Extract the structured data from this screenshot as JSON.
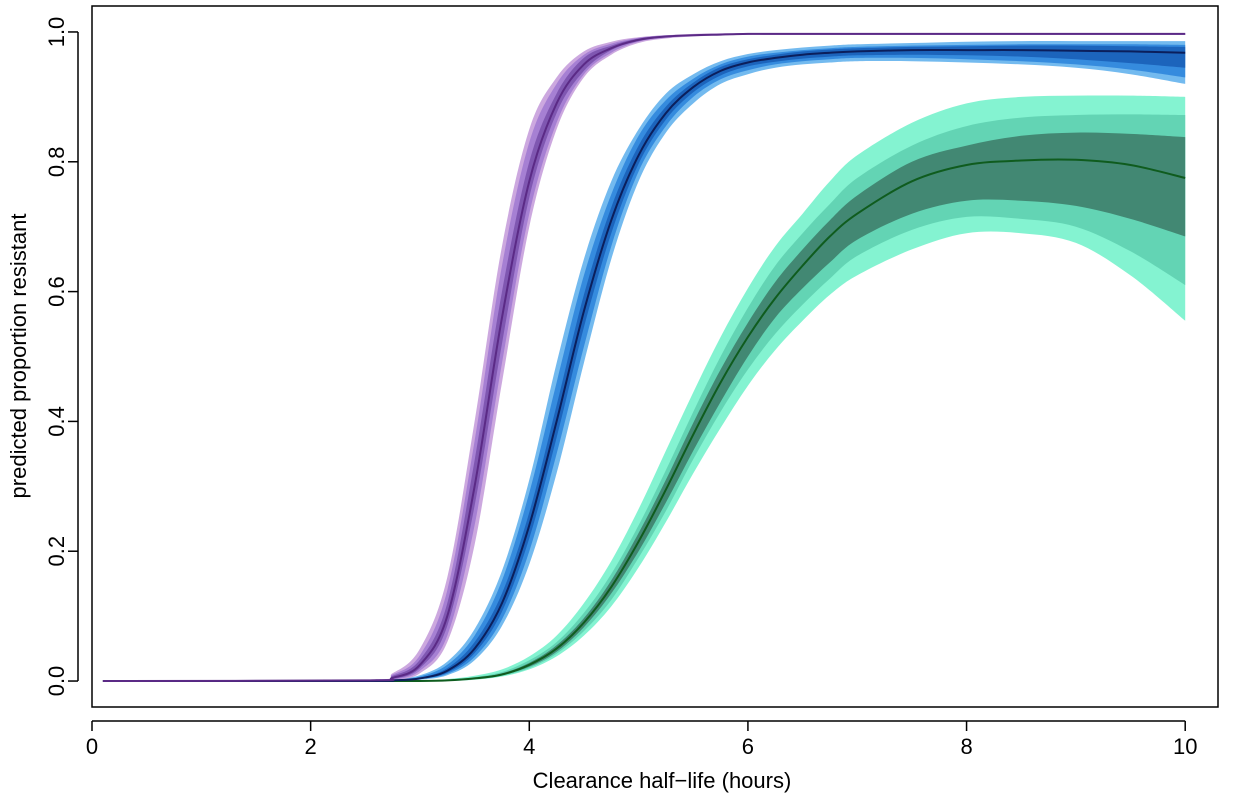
{
  "chart_data": {
    "type": "line",
    "title": "",
    "xlabel": "Clearance half−life (hours)",
    "ylabel": "predicted proportion resistant",
    "xlim": [
      0,
      10.3
    ],
    "ylim": [
      -0.04,
      1.04
    ],
    "x_ticks": [
      "0",
      "2",
      "4",
      "6",
      "8",
      "10"
    ],
    "y_ticks": [
      "0.0",
      "0.2",
      "0.4",
      "0.6",
      "0.8",
      "1.0"
    ],
    "grid": false,
    "legend": "none",
    "x": [
      0.1,
      2.5,
      2.75,
      3,
      3.25,
      3.5,
      3.75,
      4,
      4.25,
      4.5,
      4.75,
      5,
      5.25,
      5.5,
      5.75,
      6,
      6.25,
      6.5,
      6.75,
      7,
      7.5,
      8,
      8.5,
      9,
      9.5,
      10
    ],
    "series": [
      {
        "color": "#5b2a86",
        "band_colors": [
          "#c9a3dd",
          "#a27bd2",
          "#7b52ad"
        ],
        "values": [
          0,
          0.001,
          0.005,
          0.025,
          0.1,
          0.3,
          0.56,
          0.77,
          0.89,
          0.95,
          0.975,
          0.988,
          0.993,
          0.995,
          0.996,
          0.997,
          0.997,
          0.997,
          0.997,
          0.997,
          0.997,
          0.997,
          0.997,
          0.997,
          0.997,
          0.997
        ],
        "bands": [
          {
            "lower": [
              0,
              0,
              0.001,
              0.012,
              0.06,
              0.21,
              0.46,
              0.7,
              0.85,
              0.93,
              0.965,
              0.983,
              0.99,
              0.993,
              0.995,
              0.996,
              0.996,
              0.996,
              0.996,
              0.996,
              0.996,
              0.996,
              0.996,
              0.996,
              0.996,
              0.996
            ],
            "upper": [
              0,
              0.002,
              0.012,
              0.05,
              0.16,
              0.4,
              0.67,
              0.85,
              0.93,
              0.97,
              0.985,
              0.992,
              0.995,
              0.997,
              0.998,
              0.998,
              0.998,
              0.998,
              0.998,
              0.998,
              0.998,
              0.998,
              0.998,
              0.998,
              0.998,
              0.998
            ]
          },
          {
            "lower": [
              0,
              0,
              0.002,
              0.016,
              0.07,
              0.24,
              0.49,
              0.72,
              0.86,
              0.935,
              0.968,
              0.985,
              0.991,
              0.994,
              0.995,
              0.996,
              0.996,
              0.996,
              0.996,
              0.996,
              0.996,
              0.996,
              0.996,
              0.996,
              0.996,
              0.996
            ],
            "upper": [
              0,
              0.002,
              0.01,
              0.04,
              0.14,
              0.37,
              0.64,
              0.83,
              0.92,
              0.965,
              0.982,
              0.991,
              0.995,
              0.996,
              0.997,
              0.998,
              0.998,
              0.998,
              0.998,
              0.998,
              0.998,
              0.998,
              0.998,
              0.998,
              0.998,
              0.998
            ]
          },
          {
            "lower": [
              0,
              0.001,
              0.003,
              0.02,
              0.085,
              0.27,
              0.52,
              0.745,
              0.875,
              0.94,
              0.972,
              0.986,
              0.992,
              0.994,
              0.996,
              0.996,
              0.996,
              0.996,
              0.996,
              0.996,
              0.996,
              0.996,
              0.996,
              0.996,
              0.996,
              0.996
            ],
            "upper": [
              0,
              0.001,
              0.008,
              0.033,
              0.12,
              0.34,
              0.6,
              0.8,
              0.905,
              0.96,
              0.979,
              0.99,
              0.994,
              0.996,
              0.997,
              0.997,
              0.997,
              0.997,
              0.997,
              0.997,
              0.997,
              0.997,
              0.997,
              0.997,
              0.997,
              0.997
            ]
          }
        ]
      },
      {
        "color": "#0b1f5c",
        "band_colors": [
          "#6bb6ee",
          "#2f86dc",
          "#1a5fb8"
        ],
        "values": [
          0,
          0,
          0.001,
          0.004,
          0.016,
          0.05,
          0.12,
          0.24,
          0.4,
          0.57,
          0.71,
          0.81,
          0.875,
          0.915,
          0.94,
          0.953,
          0.96,
          0.965,
          0.968,
          0.97,
          0.972,
          0.972,
          0.972,
          0.971,
          0.97,
          0.968
        ],
        "bands": [
          {
            "lower": [
              0,
              0,
              0,
              0.002,
              0.009,
              0.032,
              0.085,
              0.18,
              0.32,
              0.49,
              0.65,
              0.77,
              0.845,
              0.89,
              0.92,
              0.935,
              0.945,
              0.95,
              0.953,
              0.955,
              0.955,
              0.953,
              0.95,
              0.945,
              0.935,
              0.92
            ],
            "upper": [
              0,
              0.001,
              0.003,
              0.009,
              0.03,
              0.08,
              0.17,
              0.31,
              0.49,
              0.65,
              0.77,
              0.85,
              0.905,
              0.935,
              0.955,
              0.966,
              0.972,
              0.976,
              0.979,
              0.981,
              0.983,
              0.985,
              0.986,
              0.986,
              0.986,
              0.986
            ]
          },
          {
            "lower": [
              0,
              0,
              0,
              0.003,
              0.011,
              0.037,
              0.095,
              0.2,
              0.35,
              0.515,
              0.67,
              0.785,
              0.855,
              0.9,
              0.927,
              0.941,
              0.95,
              0.955,
              0.958,
              0.96,
              0.96,
              0.958,
              0.955,
              0.95,
              0.942,
              0.93
            ],
            "upper": [
              0,
              0,
              0.002,
              0.007,
              0.025,
              0.07,
              0.155,
              0.29,
              0.46,
              0.625,
              0.75,
              0.84,
              0.895,
              0.928,
              0.95,
              0.962,
              0.968,
              0.972,
              0.975,
              0.977,
              0.979,
              0.98,
              0.981,
              0.981,
              0.981,
              0.98
            ]
          },
          {
            "lower": [
              0,
              0,
              0,
              0.003,
              0.013,
              0.043,
              0.107,
              0.22,
              0.375,
              0.545,
              0.69,
              0.797,
              0.865,
              0.907,
              0.933,
              0.947,
              0.954,
              0.959,
              0.962,
              0.964,
              0.965,
              0.964,
              0.962,
              0.958,
              0.952,
              0.945
            ],
            "upper": [
              0,
              0,
              0.001,
              0.005,
              0.02,
              0.06,
              0.135,
              0.26,
              0.425,
              0.595,
              0.73,
              0.825,
              0.885,
              0.922,
              0.946,
              0.958,
              0.965,
              0.97,
              0.973,
              0.975,
              0.977,
              0.978,
              0.979,
              0.979,
              0.978,
              0.977
            ]
          }
        ]
      },
      {
        "color": "#0f5c1e",
        "band_colors": [
          "#7df2cf",
          "#5fd0b0",
          "#3e7f6c"
        ],
        "values": [
          0,
          0,
          0,
          0,
          0.001,
          0.004,
          0.01,
          0.025,
          0.05,
          0.09,
          0.145,
          0.215,
          0.295,
          0.38,
          0.46,
          0.53,
          0.59,
          0.64,
          0.685,
          0.72,
          0.77,
          0.795,
          0.802,
          0.803,
          0.795,
          0.775
        ],
        "bands": [
          {
            "lower": [
              0,
              0,
              0,
              0,
              0,
              0.002,
              0.007,
              0.018,
              0.038,
              0.07,
              0.115,
              0.175,
              0.245,
              0.32,
              0.39,
              0.455,
              0.51,
              0.555,
              0.595,
              0.625,
              0.665,
              0.69,
              0.69,
              0.675,
              0.625,
              0.555
            ],
            "upper": [
              0,
              0,
              0,
              0.001,
              0.003,
              0.008,
              0.018,
              0.038,
              0.07,
              0.12,
              0.185,
              0.265,
              0.355,
              0.445,
              0.53,
              0.605,
              0.67,
              0.72,
              0.77,
              0.81,
              0.86,
              0.89,
              0.9,
              0.902,
              0.902,
              0.9
            ]
          },
          {
            "lower": [
              0,
              0,
              0,
              0,
              0.001,
              0.003,
              0.008,
              0.02,
              0.042,
              0.077,
              0.125,
              0.19,
              0.262,
              0.342,
              0.415,
              0.48,
              0.535,
              0.58,
              0.62,
              0.655,
              0.695,
              0.715,
              0.712,
              0.7,
              0.662,
              0.61
            ],
            "upper": [
              0,
              0,
              0,
              0.001,
              0.002,
              0.006,
              0.014,
              0.032,
              0.06,
              0.105,
              0.165,
              0.24,
              0.325,
              0.415,
              0.5,
              0.575,
              0.64,
              0.69,
              0.735,
              0.775,
              0.825,
              0.855,
              0.868,
              0.872,
              0.873,
              0.872
            ]
          },
          {
            "lower": [
              0,
              0,
              0,
              0,
              0.001,
              0.003,
              0.009,
              0.022,
              0.045,
              0.083,
              0.135,
              0.2,
              0.275,
              0.355,
              0.43,
              0.5,
              0.56,
              0.605,
              0.645,
              0.68,
              0.72,
              0.74,
              0.74,
              0.732,
              0.712,
              0.685
            ],
            "upper": [
              0,
              0,
              0,
              0,
              0.002,
              0.005,
              0.012,
              0.028,
              0.055,
              0.097,
              0.155,
              0.228,
              0.31,
              0.398,
              0.48,
              0.552,
              0.615,
              0.665,
              0.71,
              0.748,
              0.8,
              0.825,
              0.84,
              0.845,
              0.843,
              0.838
            ]
          }
        ]
      }
    ]
  }
}
